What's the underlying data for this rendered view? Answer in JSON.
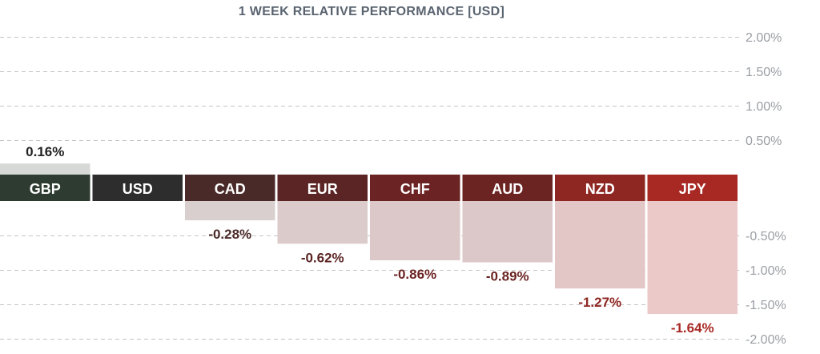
{
  "chart_data": {
    "type": "bar",
    "title": "1 WEEK RELATIVE PERFORMANCE  [USD]",
    "categories": [
      "GBP",
      "USD",
      "CAD",
      "EUR",
      "CHF",
      "AUD",
      "NZD",
      "JPY"
    ],
    "values": [
      0.16,
      0,
      -0.28,
      -0.62,
      -0.86,
      -0.89,
      -1.27,
      -1.64
    ],
    "value_labels": [
      "0.16%",
      "",
      "-0.28%",
      "-0.62%",
      "-0.86%",
      "-0.89%",
      "-1.27%",
      "-1.64%"
    ],
    "ylim": [
      -2.0,
      2.0
    ],
    "yticks": [
      {
        "value": 2.0,
        "label": "2.00%"
      },
      {
        "value": 1.5,
        "label": "1.50%"
      },
      {
        "value": 1.0,
        "label": "1.00%"
      },
      {
        "value": 0.5,
        "label": "0.50%"
      },
      {
        "value": -0.5,
        "label": "-0.50%"
      },
      {
        "value": -1.0,
        "label": "-1.00%"
      },
      {
        "value": -1.5,
        "label": "-1.50%"
      },
      {
        "value": -2.0,
        "label": "-2.00%"
      }
    ],
    "grid": true,
    "colors": {
      "header": [
        "#2e3b30",
        "#2d2d2d",
        "#4a2a28",
        "#5c2525",
        "#6b2323",
        "#6b2422",
        "#8e2621",
        "#a82823"
      ],
      "bar": [
        "#d6d9d5",
        "#d8d8d8",
        "#dacfcf",
        "#dbcbcb",
        "#dcc8c8",
        "#dcc8c8",
        "#e3c6c6",
        "#ecc9c9"
      ],
      "label": [
        "#222222",
        "#222222",
        "#4a2a28",
        "#5c2525",
        "#6b2323",
        "#6b2422",
        "#8e2621",
        "#a82823"
      ],
      "grid": "#c4c4c4",
      "tick": "#9a9ea4"
    }
  }
}
